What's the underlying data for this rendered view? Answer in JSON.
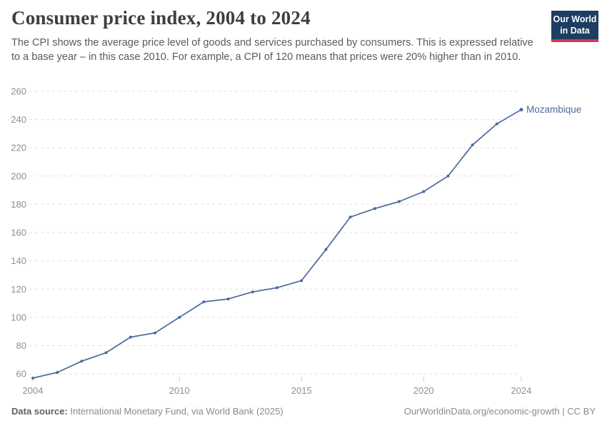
{
  "header": {
    "title": "Consumer price index, 2004 to 2024",
    "subtitle": "The CPI shows the average price level of goods and services purchased by consumers. This is expressed relative to a base year – in this case 2010. For example, a CPI of 120 means that prices were 20% higher than in 2010.",
    "logo": {
      "line1": "Our World",
      "line2": "in Data"
    }
  },
  "footer": {
    "source_label": "Data source:",
    "source_text": " International Monetary Fund, via World Bank (2025)",
    "attribution": "OurWorldinData.org/economic-growth | CC BY"
  },
  "chart_data": {
    "type": "line",
    "title": "Consumer price index, 2004 to 2024",
    "xlabel": "",
    "ylabel": "",
    "x": [
      2004,
      2005,
      2006,
      2007,
      2008,
      2009,
      2010,
      2011,
      2012,
      2013,
      2014,
      2015,
      2016,
      2017,
      2018,
      2019,
      2020,
      2021,
      2022,
      2023,
      2024
    ],
    "series": [
      {
        "name": "Mozambique",
        "values": [
          57,
          61,
          69,
          75,
          86,
          89,
          100,
          111,
          113,
          118,
          121,
          126,
          148,
          171,
          177,
          182,
          189,
          200,
          222,
          237,
          247
        ]
      }
    ],
    "xlim": [
      2004,
      2024
    ],
    "ylim": [
      55,
      260
    ],
    "y_ticks": [
      60,
      80,
      100,
      120,
      140,
      160,
      180,
      200,
      220,
      240,
      260
    ],
    "x_ticks": [
      2004,
      2010,
      2015,
      2020,
      2024
    ],
    "grid": "horizontal dashed",
    "legend_position": "end-of-line label"
  },
  "colors": {
    "series_line": "#4C6A9C",
    "gridline": "#e0e0e0",
    "tick_text": "#8f8f8f",
    "logo_navy": "#1d3d63",
    "logo_red": "#cf3a4e"
  }
}
